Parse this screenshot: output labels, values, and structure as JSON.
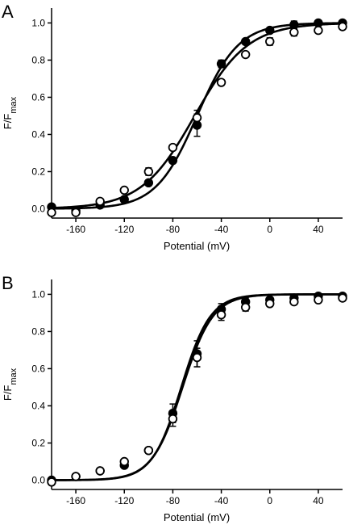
{
  "figure": {
    "panels": [
      "A",
      "B"
    ]
  },
  "chart_data": [
    {
      "type": "scatter",
      "panel_label": "A",
      "title": "",
      "xlabel": "Potential (mV)",
      "ylabel_main": "F/F",
      "ylabel_sub": "max",
      "xlim": [
        -180,
        60
      ],
      "ylim": [
        -0.05,
        1.08
      ],
      "xticks": [
        -160,
        -120,
        -80,
        -40,
        0,
        40
      ],
      "xtick_labels": [
        "-160",
        "-120",
        "-80",
        "-40",
        "0",
        "40"
      ],
      "yticks": [
        0.0,
        0.2,
        0.4,
        0.6,
        0.8,
        1.0
      ],
      "ytick_labels": [
        "0.0",
        "0.2",
        "0.4",
        "0.6",
        "0.8",
        "1.0"
      ],
      "grid": false,
      "series": [
        {
          "marker": "filled-circle",
          "x": [
            -180,
            -160,
            -140,
            -120,
            -100,
            -80,
            -60,
            -40,
            -20,
            0,
            20,
            40,
            60
          ],
          "y": [
            0.01,
            -0.01,
            0.02,
            0.05,
            0.14,
            0.26,
            0.45,
            0.78,
            0.9,
            0.96,
            0.99,
            1.0,
            1.0
          ],
          "err": [
            0,
            0,
            0,
            0,
            0,
            0,
            0.06,
            0.02,
            0,
            0,
            0.02,
            0,
            0
          ],
          "fit": {
            "v_half": -60,
            "slope": 17
          }
        },
        {
          "marker": "open-circle",
          "x": [
            -180,
            -160,
            -140,
            -120,
            -100,
            -80,
            -60,
            -40,
            -20,
            0,
            20,
            40,
            60
          ],
          "y": [
            -0.02,
            -0.02,
            0.04,
            0.1,
            0.2,
            0.33,
            0.49,
            0.68,
            0.83,
            0.9,
            0.95,
            0.96,
            0.98
          ],
          "err": [
            0,
            0,
            0,
            0.01,
            0.02,
            0,
            0.04,
            0,
            0,
            0.02,
            0.02,
            0,
            0
          ],
          "fit": {
            "v_half": -62,
            "slope": 22
          }
        }
      ]
    },
    {
      "type": "scatter",
      "panel_label": "B",
      "title": "",
      "xlabel": "Potential (mV)",
      "ylabel_main": "F/F",
      "ylabel_sub": "max",
      "xlim": [
        -180,
        60
      ],
      "ylim": [
        -0.05,
        1.08
      ],
      "xticks": [
        -160,
        -120,
        -80,
        -40,
        0,
        40
      ],
      "xtick_labels": [
        "-160",
        "-120",
        "-80",
        "-40",
        "0",
        "40"
      ],
      "yticks": [
        0.0,
        0.2,
        0.4,
        0.6,
        0.8,
        1.0
      ],
      "ytick_labels": [
        "0.0",
        "0.2",
        "0.4",
        "0.6",
        "0.8",
        "1.0"
      ],
      "grid": false,
      "series": [
        {
          "marker": "filled-circle",
          "x": [
            -180,
            -160,
            -140,
            -120,
            -100,
            -80,
            -60,
            -40,
            -20,
            0,
            20,
            40,
            60
          ],
          "y": [
            0.0,
            0.02,
            0.05,
            0.08,
            0.16,
            0.36,
            0.68,
            0.92,
            0.96,
            0.97,
            0.98,
            0.99,
            0.99
          ],
          "err": [
            0,
            0,
            0,
            0,
            0,
            0.05,
            0.07,
            0.03,
            0.02,
            0,
            0,
            0,
            0
          ],
          "fit": {
            "v_half": -73,
            "slope": 12
          }
        },
        {
          "marker": "open-circle",
          "x": [
            -180,
            -160,
            -140,
            -120,
            -100,
            -80,
            -60,
            -40,
            -20,
            0,
            20,
            40,
            60
          ],
          "y": [
            -0.01,
            0.02,
            0.05,
            0.1,
            0.16,
            0.33,
            0.66,
            0.89,
            0.93,
            0.95,
            0.96,
            0.97,
            0.98
          ],
          "err": [
            0,
            0,
            0,
            0.01,
            0,
            0.04,
            0.05,
            0.03,
            0.02,
            0,
            0,
            0,
            0
          ],
          "fit": {
            "v_half": -72,
            "slope": 12.5
          }
        }
      ]
    }
  ]
}
